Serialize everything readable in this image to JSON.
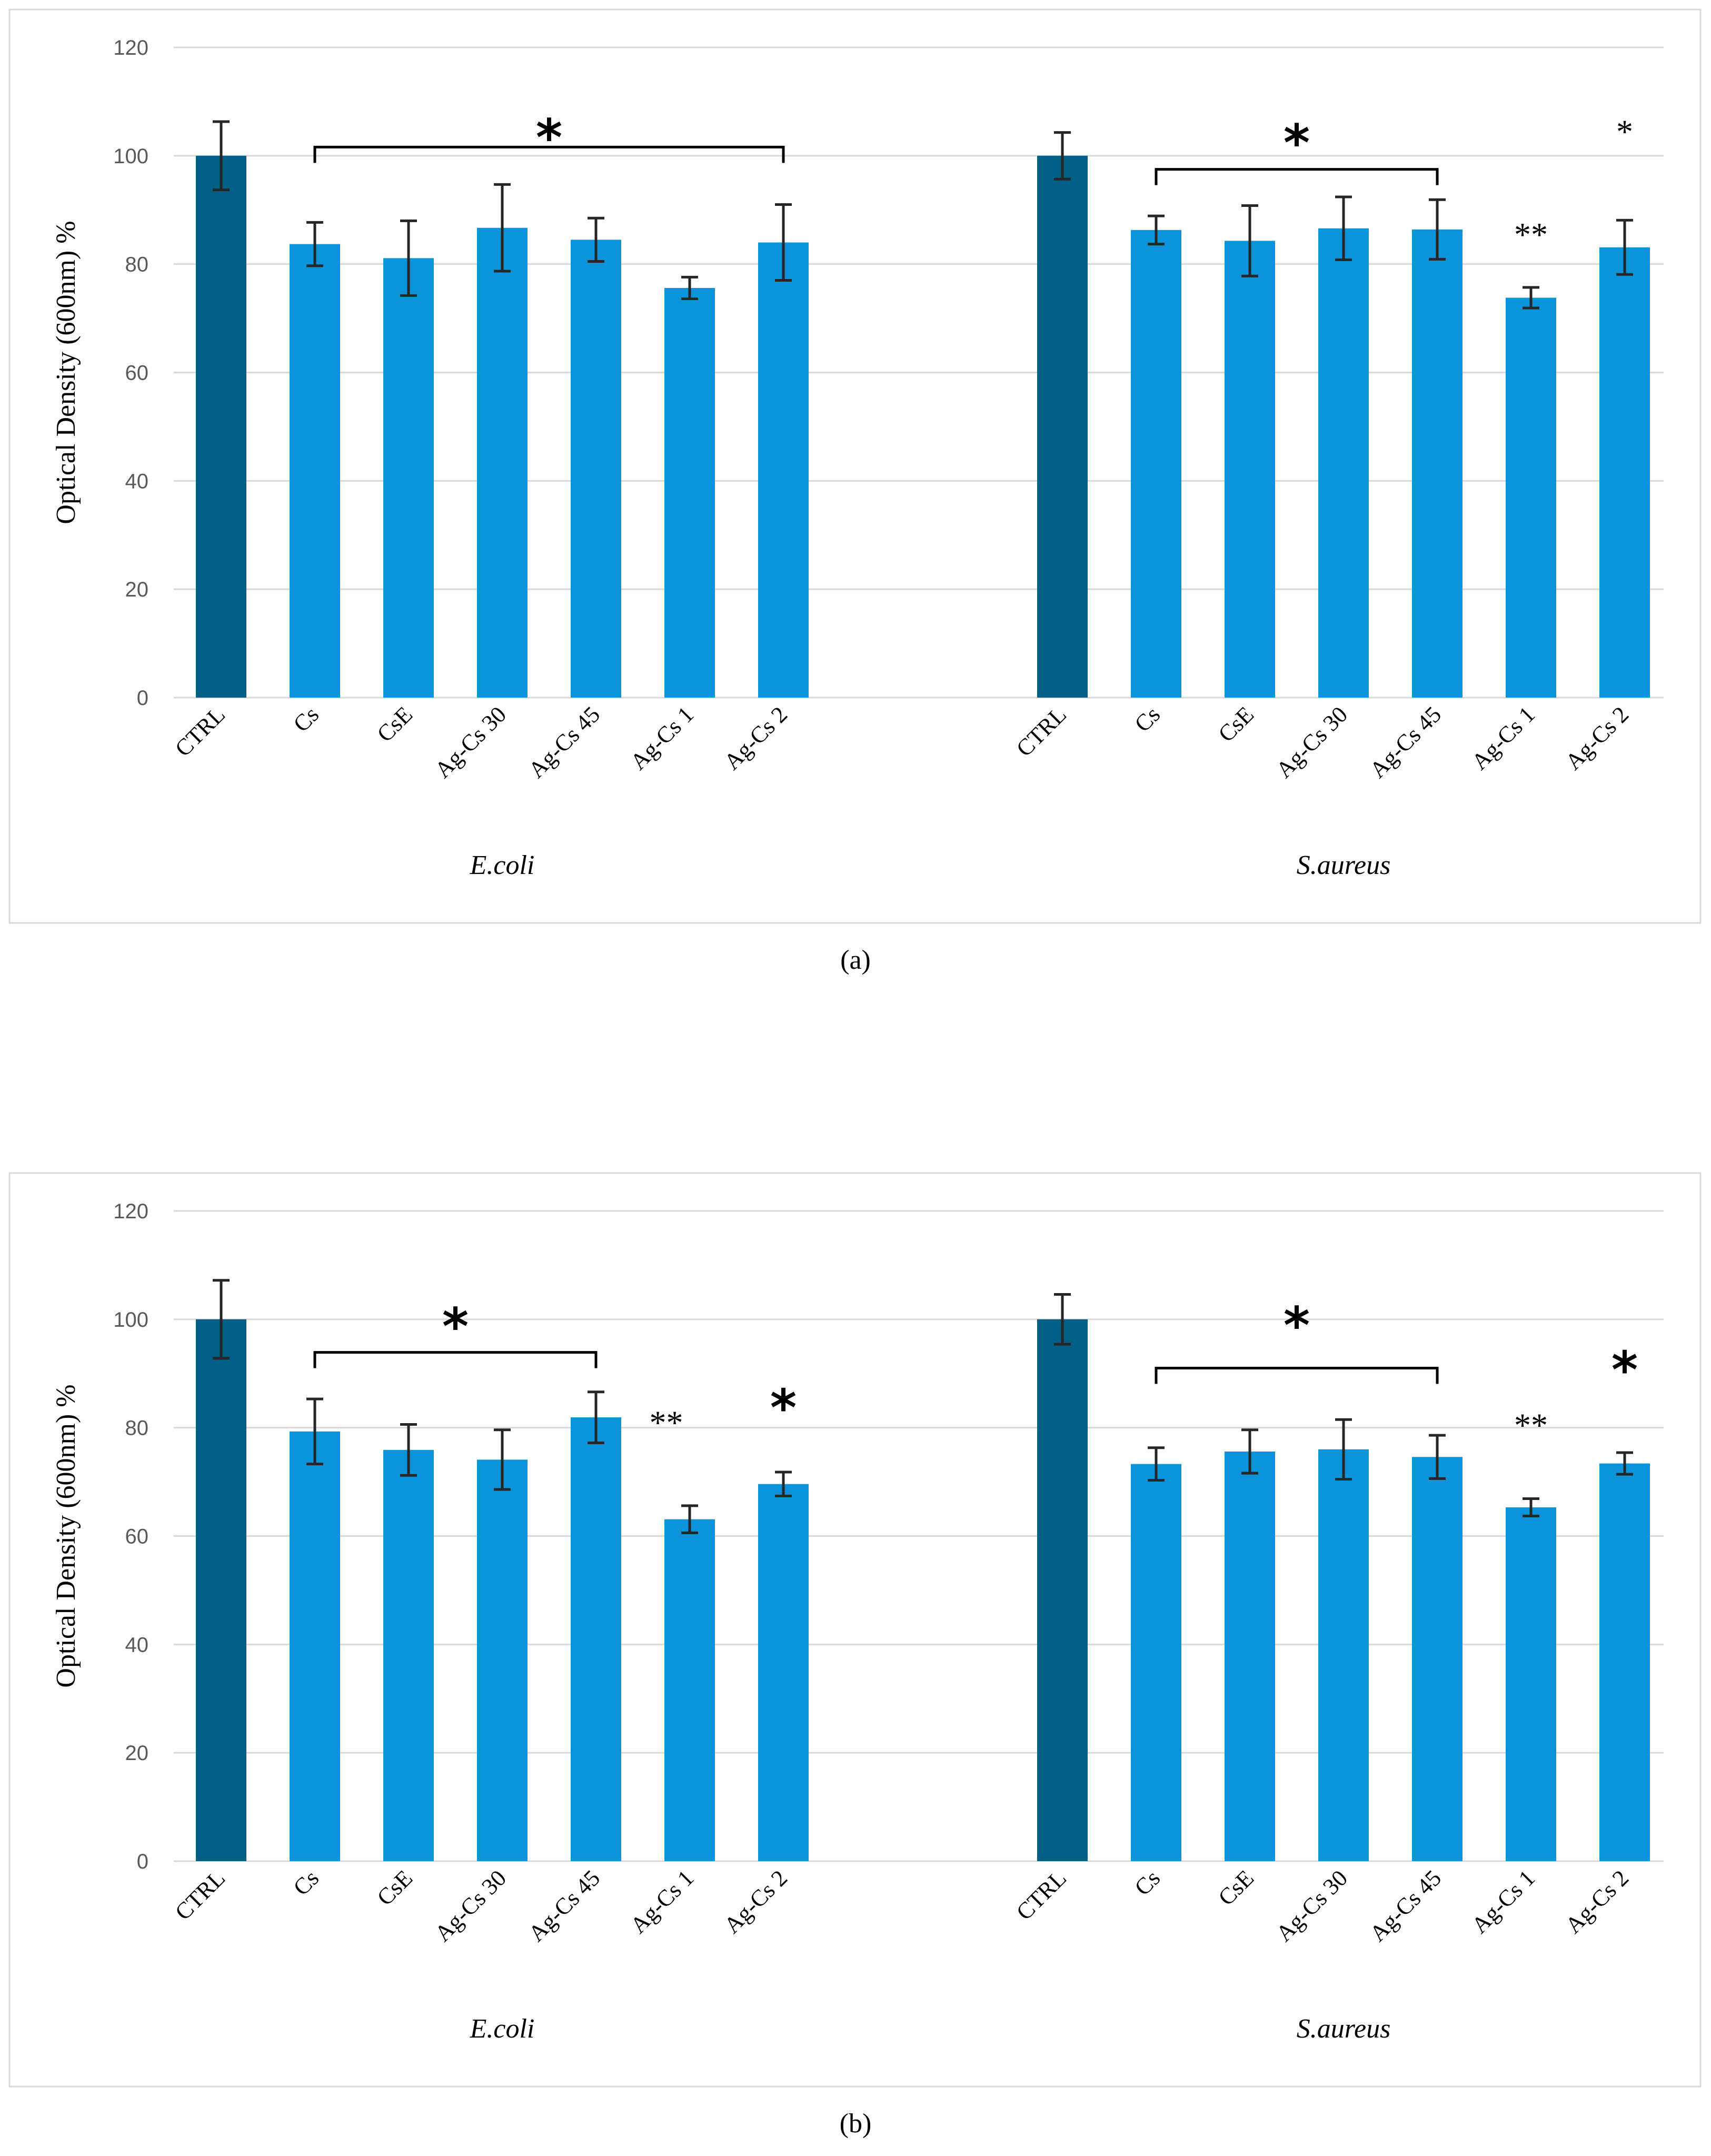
{
  "chart_data": [
    {
      "type": "bar",
      "panel": "(a)",
      "caption": "(a)",
      "ylabel": "Optical Density (600nm) %",
      "ylim": [
        0,
        120
      ],
      "yticks": [
        "0",
        "20",
        "40",
        "60",
        "80",
        "100",
        "120"
      ],
      "groups": [
        {
          "name": "E.coli",
          "categories": [
            "CTRL",
            "Cs",
            "CsE",
            "Ag-Cs 30",
            "Ag-Cs 45",
            "Ag-Cs 1",
            "Ag-Cs 2"
          ],
          "values": [
            100,
            83.7,
            81.1,
            86.7,
            84.5,
            75.6,
            84
          ],
          "errors": [
            6.3,
            4,
            6.9,
            8,
            4,
            2,
            7
          ],
          "colors": [
            "#005f85",
            "#0b94d9",
            "#0b94d9",
            "#0b94d9",
            "#0b94d9",
            "#0b94d9",
            "#0b94d9"
          ],
          "annotations": [
            {
              "type": "bracket",
              "text": "*",
              "from": 1,
              "to": 6,
              "y": 101.6,
              "text_y": 103.5,
              "size": "big"
            }
          ]
        },
        {
          "name": "S.aureus",
          "categories": [
            "CTRL",
            "Cs",
            "CsE",
            "Ag-Cs 30",
            "Ag-Cs 45",
            "Ag-Cs 1",
            "Ag-Cs 2"
          ],
          "values": [
            100,
            86.3,
            84.3,
            86.6,
            86.4,
            73.8,
            83.1
          ],
          "errors": [
            4.3,
            2.6,
            6.5,
            5.8,
            5.5,
            1.9,
            5
          ],
          "colors": [
            "#005f85",
            "#0b94d9",
            "#0b94d9",
            "#0b94d9",
            "#0b94d9",
            "#0b94d9",
            "#0b94d9"
          ],
          "annotations": [
            {
              "type": "bracket",
              "text": "*",
              "from": 1,
              "to": 4,
              "y": 97.5,
              "text_y": 102.5,
              "size": "big"
            },
            {
              "type": "label",
              "text": "**",
              "at": 5,
              "y": 85.5,
              "size": "small"
            },
            {
              "type": "label",
              "text": "*",
              "at": 6,
              "y": 104.5,
              "size": "small"
            }
          ]
        }
      ]
    },
    {
      "type": "bar",
      "panel": "(b)",
      "caption": "(b)",
      "ylabel": "Optical Density (600nm) %",
      "ylim": [
        0,
        120
      ],
      "yticks": [
        "0",
        "20",
        "40",
        "60",
        "80",
        "100",
        "120"
      ],
      "groups": [
        {
          "name": "E.coli",
          "categories": [
            "CTRL",
            "Cs",
            "CsE",
            "Ag-Cs 30",
            "Ag-Cs 45",
            "Ag-Cs 1",
            "Ag-Cs 2"
          ],
          "values": [
            100,
            79.3,
            75.9,
            74.1,
            81.9,
            63.1,
            69.6
          ],
          "errors": [
            7.2,
            6,
            4.7,
            5.5,
            4.7,
            2.5,
            2.2
          ],
          "colors": [
            "#005f85",
            "#0b94d9",
            "#0b94d9",
            "#0b94d9",
            "#0b94d9",
            "#0b94d9",
            "#0b94d9"
          ],
          "annotations": [
            {
              "type": "bracket",
              "text": "*",
              "from": 1,
              "to": 4,
              "y": 93.9,
              "text_y": 98.8,
              "size": "big"
            },
            {
              "type": "label",
              "text": "**",
              "at": 4.75,
              "y": 81,
              "size": "small"
            },
            {
              "type": "label",
              "text": "*",
              "at": 6,
              "y": 83.8,
              "size": "big"
            }
          ]
        },
        {
          "name": "S.aureus",
          "categories": [
            "CTRL",
            "Cs",
            "CsE",
            "Ag-Cs 30",
            "Ag-Cs 45",
            "Ag-Cs 1",
            "Ag-Cs 2"
          ],
          "values": [
            100,
            73.3,
            75.6,
            76,
            74.6,
            65.3,
            73.4
          ],
          "errors": [
            4.6,
            3,
            4,
            5.5,
            4,
            1.6,
            2
          ],
          "colors": [
            "#005f85",
            "#0b94d9",
            "#0b94d9",
            "#0b94d9",
            "#0b94d9",
            "#0b94d9",
            "#0b94d9"
          ],
          "annotations": [
            {
              "type": "bracket",
              "text": "*",
              "from": 1,
              "to": 4,
              "y": 91,
              "text_y": 99,
              "size": "big"
            },
            {
              "type": "label",
              "text": "**",
              "at": 5,
              "y": 80.5,
              "size": "small"
            },
            {
              "type": "label",
              "text": "*",
              "at": 6,
              "y": 90.8,
              "size": "big"
            }
          ]
        }
      ]
    }
  ]
}
